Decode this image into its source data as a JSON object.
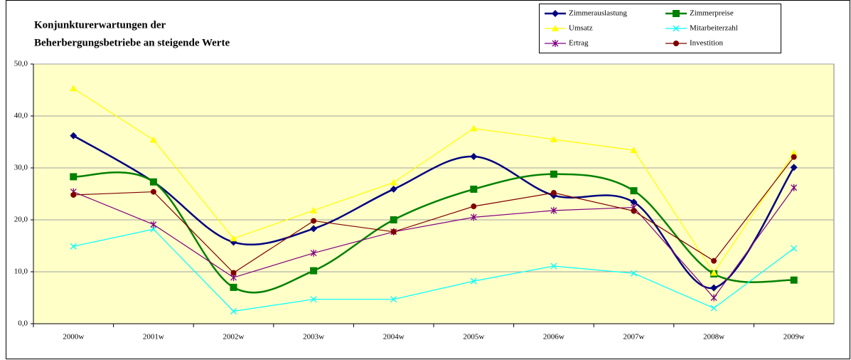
{
  "chart_data": {
    "type": "line",
    "title": [
      "Konjunkturerwartungen der",
      "Beherbergungsbetriebe an steigende Werte"
    ],
    "categories": [
      "2000w",
      "2001w",
      "2002w",
      "2003w",
      "2004w",
      "2005w",
      "2006w",
      "2007w",
      "2008w",
      "2009w"
    ],
    "series": [
      {
        "name": "Zimmerauslastung",
        "color": "#000080",
        "marker": "diamond",
        "smooth": true,
        "values": [
          36.2,
          27.3,
          15.7,
          18.3,
          25.9,
          32.2,
          24.7,
          23.4,
          6.9,
          30.1
        ]
      },
      {
        "name": "Zimmerpreise",
        "color": "#008000",
        "marker": "square",
        "smooth": true,
        "values": [
          28.3,
          27.3,
          7.0,
          10.2,
          20.0,
          25.9,
          28.8,
          25.6,
          9.6,
          8.4
        ]
      },
      {
        "name": "Umsatz",
        "color": "#ffff00",
        "marker": "triangle",
        "smooth": false,
        "values": [
          45.3,
          35.4,
          16.4,
          21.8,
          27.2,
          37.6,
          35.5,
          33.4,
          9.8,
          32.9
        ]
      },
      {
        "name": "Mitarbeiterzahl",
        "color": "#00ffff",
        "marker": "x",
        "smooth": false,
        "values": [
          14.9,
          18.2,
          2.4,
          4.7,
          4.7,
          8.2,
          11.1,
          9.7,
          3.0,
          14.5
        ]
      },
      {
        "name": "Ertrag",
        "color": "#800080",
        "marker": "star",
        "smooth": false,
        "values": [
          25.4,
          19.1,
          8.9,
          13.6,
          17.7,
          20.5,
          21.8,
          22.4,
          5.0,
          26.2
        ]
      },
      {
        "name": "Investition",
        "color": "#800000",
        "marker": "circle",
        "smooth": false,
        "values": [
          24.8,
          25.4,
          9.8,
          19.8,
          17.7,
          22.6,
          25.2,
          21.7,
          12.1,
          32.1
        ]
      }
    ],
    "ylim": [
      0,
      50
    ],
    "yticks": [
      {
        "value": 0,
        "label": "0,0"
      },
      {
        "value": 10,
        "label": "10,0"
      },
      {
        "value": 20,
        "label": "20,0"
      },
      {
        "value": 30,
        "label": "30,0"
      },
      {
        "value": 40,
        "label": "40,0"
      },
      {
        "value": 50,
        "label": "50,0"
      }
    ],
    "grid": true,
    "legend": "top-right"
  }
}
